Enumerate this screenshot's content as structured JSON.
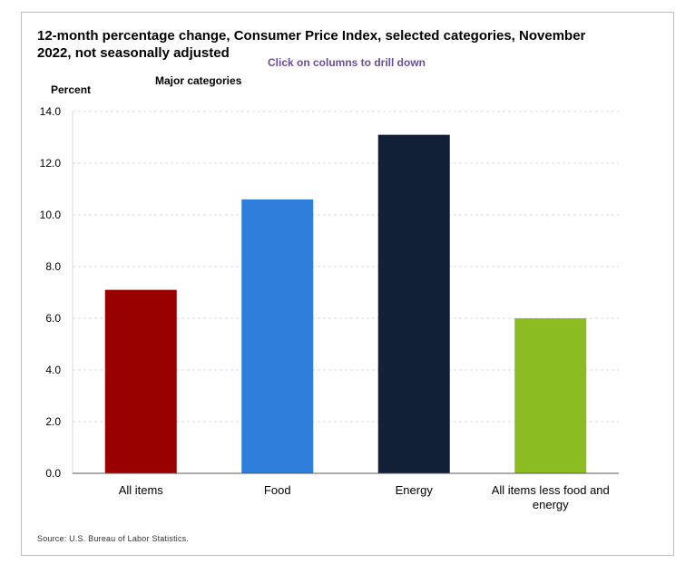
{
  "header": {
    "title": "12-month percentage change, Consumer Price Index, selected categories, November 2022, not seasonally adjusted",
    "drill_hint": "Click on columns to drill down"
  },
  "footer": {
    "source": "Source: U.S. Bureau of Labor Statistics."
  },
  "chart_data": {
    "type": "bar",
    "title": "12-month percentage change, Consumer Price Index, selected categories, November 2022, not seasonally adjusted",
    "subtitle": "Major categories",
    "xlabel": "",
    "ylabel": "Percent",
    "ylim": [
      0,
      14
    ],
    "yticks": [
      0,
      2,
      4,
      6,
      8,
      10,
      12,
      14
    ],
    "ytick_labels": [
      "0.0",
      "2.0",
      "4.0",
      "6.0",
      "8.0",
      "10.0",
      "12.0",
      "14.0"
    ],
    "grid": true,
    "categories": [
      "All items",
      "Food",
      "Energy",
      "All items less food and energy"
    ],
    "category_lines": [
      [
        "All items"
      ],
      [
        "Food"
      ],
      [
        "Energy"
      ],
      [
        "All items less food and",
        "energy"
      ]
    ],
    "values": [
      7.1,
      10.6,
      13.1,
      6.0
    ],
    "colors": [
      "#990000",
      "#2e7fdc",
      "#112036",
      "#8bbc21"
    ],
    "bar_names": [
      "bar-all-items",
      "bar-food",
      "bar-energy",
      "bar-all-items-less-food-and-energy"
    ]
  }
}
